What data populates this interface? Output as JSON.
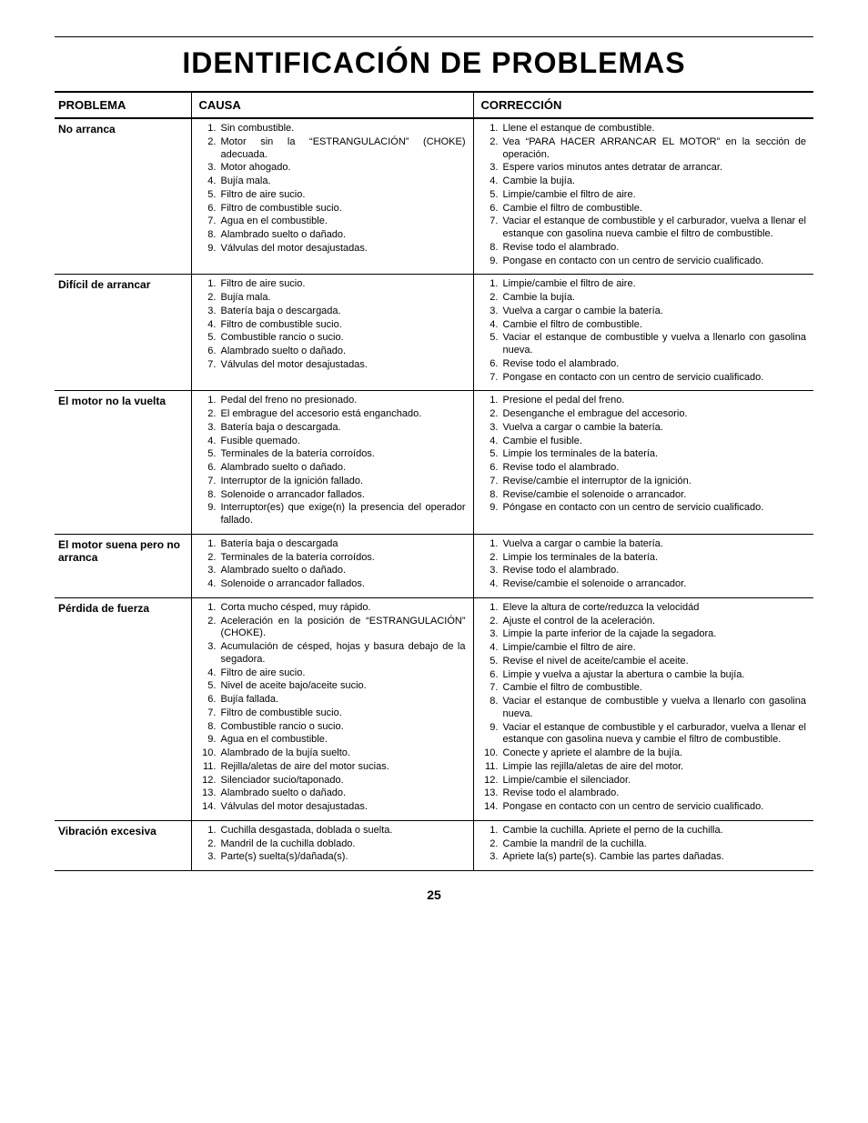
{
  "title": "IDENTIFICACIÓN DE PROBLEMAS",
  "page_number": "25",
  "columns": {
    "problem": "PROBLEMA",
    "cause": "CAUSA",
    "correction": "CORRECCIÓN"
  },
  "rows": [
    {
      "problem": "No arranca",
      "causes": [
        "Sin combustible.",
        "Motor sin la “ESTRANGULACIÓN” (CHOKE) adecuada.",
        "Motor ahogado.",
        "Bujía mala.",
        "Filtro de aire sucio.",
        "Filtro de combustible sucio.",
        "Agua en el combustible.",
        "Alambrado suelto o dañado.",
        "Válvulas del motor desajustadas."
      ],
      "corrections": [
        "Llene el estanque de combustible.",
        "Vea “PARA HACER ARRANCAR EL MOTOR” en la sección de operación.",
        "Espere varios minutos antes detratar de arrancar.",
        "Cambie la bujía.",
        "Limpie/cambie el filtro de aire.",
        "Cambie el filtro de combustible.",
        "Vaciar el estanque de combustible y el carburador, vuelva a llenar el estanque con gasolina nueva cambie el filtro de combustible.",
        "Revise todo el alambrado.",
        "Pongase en contacto con un centro de servicio cualificado."
      ]
    },
    {
      "problem": "Difícil de arrancar",
      "causes": [
        "Filtro de aire sucio.",
        "Bujía mala.",
        "Batería baja o descargada.",
        "Filtro de combustible sucio.",
        "Combustible rancio o sucio.",
        "Alambrado suelto o dañado.",
        "Válvulas del motor desajustadas."
      ],
      "corrections": [
        "Limpie/cambie el filtro de aire.",
        "Cambie la bujía.",
        "Vuelva a cargar o cambie la batería.",
        "Cambie el filtro de combustible.",
        "Vaciar el estanque de combustible y vuelva a llenarlo con gasolina nueva.",
        "Revise todo el alambrado.",
        "Pongase en contacto con un centro de servicio cualificado."
      ]
    },
    {
      "problem": "El motor no la vuelta",
      "causes": [
        "Pedal del freno no presionado.",
        "El embrague del accesorio está enganchado.",
        "Batería baja o descargada.",
        "Fusible quemado.",
        "Terminales de la batería corroídos.",
        "Alambrado suelto o dañado.",
        "Interruptor de la ignición fallado.",
        "Solenoide o arrancador fallados.",
        "Interruptor(es) que exige(n) la presencia del operador fallado."
      ],
      "corrections": [
        "Presione el pedal del freno.",
        "Desenganche el embrague del accesorio.",
        "Vuelva a cargar o cambie la batería.",
        "Cambie el fusible.",
        "Limpie los terminales de la batería.",
        "Revise todo el alambrado.",
        "Revise/cambie el interruptor de la ignición.",
        "Revise/cambie el solenoide o arrancador.",
        "Póngase en contacto con un centro de servicio cualificado."
      ]
    },
    {
      "problem": "El motor suena pero no arranca",
      "causes": [
        "Batería baja o descargada",
        "Terminales de la batería corroídos.",
        "Alambrado suelto o dañado.",
        "Solenoide o arrancador fallados."
      ],
      "corrections": [
        "Vuelva a cargar o cambie la batería.",
        "Limpie los terminales de la batería.",
        "Revise todo el alambrado.",
        "Revise/cambie el solenoide o arrancador."
      ]
    },
    {
      "problem": "Pérdida de fuerza",
      "causes": [
        "Corta mucho césped, muy rápido.",
        "Aceleración en la posición de “ESTRANGULACIÓN” (CHOKE).",
        "Acumulación de césped, hojas y basura debajo de la segadora.",
        "Filtro de aire sucio.",
        "Nivel de aceite bajo/aceite sucio.",
        "Bujía fallada.",
        "Filtro de combustible sucio.",
        "Combustible rancio o sucio.",
        "Agua en el combustible.",
        "Alambrado de la bujía suelto.",
        "Rejilla/aletas de aire del motor sucias.",
        "Silenciador sucio/taponado.",
        "Alambrado suelto o dañado.",
        "Válvulas del motor desajustadas."
      ],
      "corrections": [
        "Eleve la altura de corte/reduzca la velocidád",
        "Ajuste el control de la aceleración.",
        "Limpie la parte inferior de la cajade la segadora.",
        "Limpie/cambie el filtro de aire.",
        "Revise el nivel de aceite/cambie el aceite.",
        "Limpie y vuelva a ajustar la abertura o cambie la bujía.",
        "Cambie el filtro de combustible.",
        "Vaciar el estanque de combustible y vuelva a llenarlo con gasolina nueva.",
        "Vaciar el estanque de combustible y el carburador, vuelva a llenar el estanque con gasolina nueva y cambie el filtro de combustible.",
        "Conecte y apriete el alambre de la bujía.",
        "Limpie las rejilla/aletas de aire del motor.",
        "Limpie/cambie el silenciador.",
        "Revise todo el alambrado.",
        "Pongase en contacto con un centro de servicio cualificado."
      ]
    },
    {
      "problem": "Vibración excesiva",
      "causes": [
        "Cuchilla desgastada, doblada o suelta.",
        "Mandril de la cuchilla doblado.",
        "Parte(s) suelta(s)/dañada(s)."
      ],
      "corrections": [
        "Cambie la cuchilla. Apriete el perno de la cuchilla.",
        "Cambie la mandril de la cuchilla.",
        "Apriete la(s) parte(s). Cambie las partes dañadas."
      ]
    }
  ]
}
